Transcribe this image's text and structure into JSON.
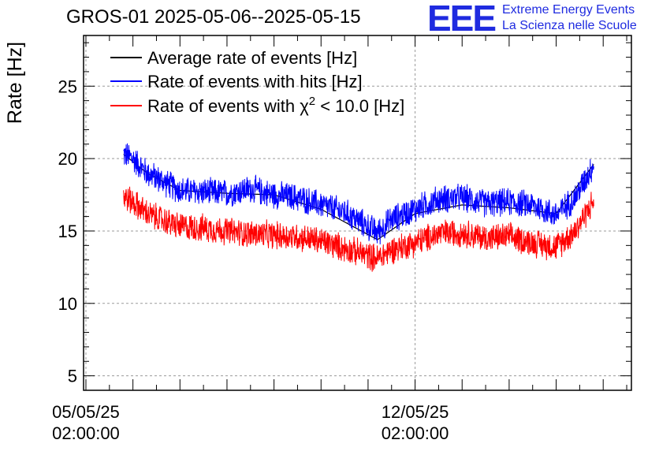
{
  "title": "GROS-01 2025-05-06--2025-05-15",
  "logo": {
    "mark": "EEE",
    "line1": "Extreme Energy Events",
    "line2": "La Scienza nelle Scuole",
    "color": "#1f2be0"
  },
  "chart_data": {
    "type": "line",
    "ylabel": "Rate [Hz]",
    "xlabel": "",
    "ylim": [
      4,
      28.5
    ],
    "yticks": [
      5,
      10,
      15,
      20,
      25
    ],
    "grid": true,
    "legend_position": "top-left",
    "x_ticks": [
      {
        "day": 0,
        "label_date": "05/05/25",
        "label_time": "02:00:00"
      },
      {
        "day": 7,
        "label_date": "12/05/25",
        "label_time": "02:00:00"
      }
    ],
    "xlim_days": [
      -0.05,
      11.6
    ],
    "series": [
      {
        "name": "Average rate of events [Hz]",
        "color": "#000000",
        "noise": 0,
        "days": [
          0.8,
          1.3,
          2.0,
          3.0,
          4.0,
          5.0,
          6.2,
          7.0,
          8.0,
          9.0,
          10.0,
          10.8
        ],
        "values": [
          20.3,
          19.0,
          17.8,
          17.6,
          17.5,
          16.5,
          14.4,
          16.2,
          16.8,
          16.6,
          16.2,
          19.6
        ]
      },
      {
        "name": "Rate of events with hits [Hz]",
        "color": "#0000ff",
        "noise": 1.1,
        "days": [
          0.8,
          1.0,
          1.3,
          1.6,
          2.0,
          2.5,
          3.0,
          3.5,
          4.0,
          4.5,
          5.0,
          5.5,
          6.0,
          6.2,
          6.5,
          7.0,
          7.5,
          8.0,
          8.5,
          9.0,
          9.5,
          10.0,
          10.4,
          10.8
        ],
        "values": [
          20.3,
          20.0,
          19.0,
          18.5,
          17.8,
          17.7,
          17.6,
          17.9,
          17.5,
          17.3,
          16.8,
          16.3,
          15.3,
          14.9,
          15.8,
          16.5,
          17.2,
          17.3,
          16.9,
          17.0,
          16.8,
          16.1,
          17.3,
          19.6
        ]
      },
      {
        "name": "Rate of events with χ² < 10.0 [Hz]",
        "legend_prefix": "Rate of events with χ",
        "legend_sup": "2",
        "legend_suffix": " < 10.0 [Hz]",
        "color": "#ff0000",
        "noise": 1.1,
        "days": [
          0.8,
          1.0,
          1.3,
          1.6,
          2.0,
          2.5,
          3.0,
          3.5,
          4.0,
          4.5,
          5.0,
          5.5,
          6.0,
          6.2,
          6.5,
          7.0,
          7.5,
          8.0,
          8.5,
          9.0,
          9.5,
          10.0,
          10.4,
          10.8
        ],
        "values": [
          17.4,
          17.0,
          16.2,
          15.8,
          15.3,
          15.2,
          15.0,
          14.8,
          14.7,
          14.6,
          14.3,
          13.8,
          13.3,
          13.1,
          13.7,
          14.2,
          14.8,
          14.9,
          14.5,
          14.6,
          14.2,
          13.9,
          15.0,
          17.1
        ]
      }
    ]
  }
}
